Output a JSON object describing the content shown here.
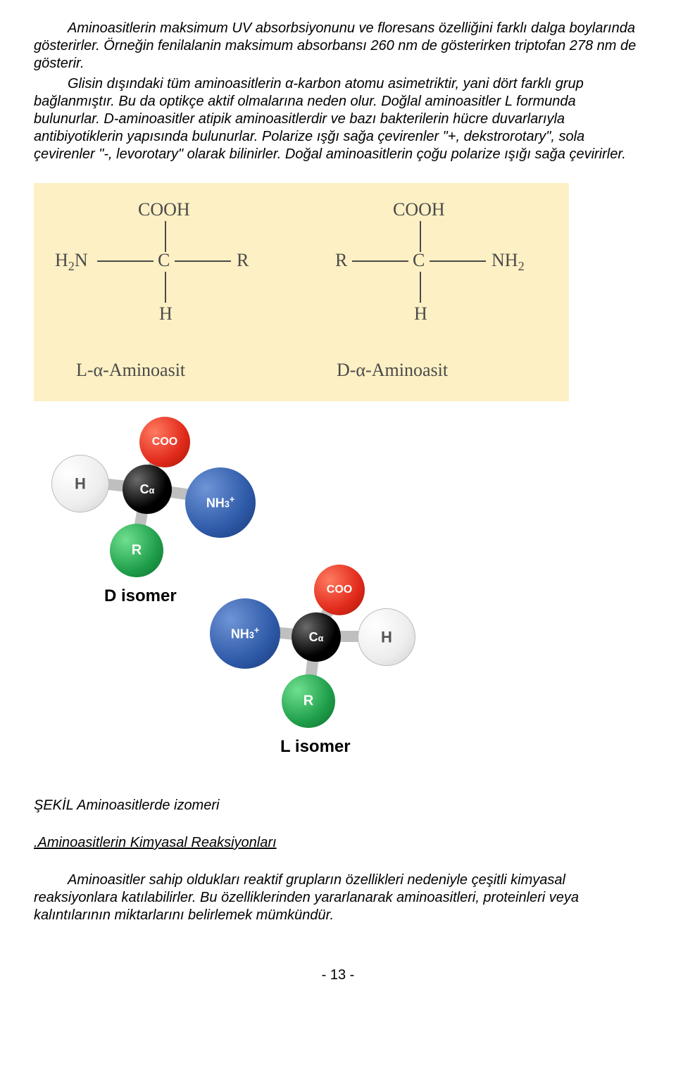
{
  "paragraphs": {
    "p1": "Aminoasitlerin maksimum UV absorbsiyonunu ve floresans özelliğini farklı dalga boylarında gösterirler. Örneğin fenilalanin maksimum absorbansı 260 nm de gösterirken triptofan 278 nm de gösterir.",
    "p2": "Glisin dışındaki tüm aminoasitlerin α-karbon atomu asimetriktir, yani dört farklı grup bağlanmıştır. Bu da optikçe aktif olmalarına neden olur. Doğlal aminoasitler L formunda bulunurlar. D-aminoasitler atipik aminoasitlerdir ve bazı bakterilerin hücre duvarlarıyla antibiyotiklerin yapısında bulunurlar. Polarize ışğı sağa çevirenler \"+, dekstrorotary\", sola çevirenler \"-, levorotary\" olarak bilinirler. Doğal aminoasitlerin çoğu polarize ışığı sağa çevirirler.",
    "figcap": "ŞEKİL  Aminoasitlerde izomeri",
    "heading": ".Aminoasitlerin Kimyasal Reaksiyonları",
    "p3": "Aminoasitler sahip oldukları reaktif grupların özellikleri nedeniyle çeşitli kimyasal reaksiyonlara katılabilirler. Bu özelliklerinden yararlanarak aminoasitleri, proteinleri veya kalıntılarının miktarlarını belirlemek mümkündür.",
    "pagenum": "- 13 -"
  },
  "diagram1": {
    "bg_color": "#fdf0c4",
    "line_color": "#4a4a4a",
    "text_color": "#4a4a4a",
    "labels": {
      "cooh_l": "COOH",
      "cooh_r": "COOH",
      "h2n": "H<span class=\"sub\">2</span>N",
      "c_l": "C",
      "r_l": "R",
      "r_r": "R",
      "c_r": "C",
      "nh2": "NH<span class=\"sub\">2</span>",
      "h_bl": "H",
      "h_br": "H",
      "name_l": "L-α-Aminoasit",
      "name_r": "D-α-Aminoasit"
    }
  },
  "diagram2": {
    "colors": {
      "bond": "#bfbfbf",
      "black": "#000000",
      "red": "#e12a1b",
      "blue": "#2e5aa8",
      "green": "#1f9e4a",
      "white_fill": "#f5f5f5",
      "white_stroke": "#bcbcbc",
      "txt_on_dark": "#ffffff",
      "txt_on_light": "#555555"
    },
    "labels": {
      "coo": "COO",
      "h": "H",
      "c_alpha": "C<span class=\"supersub\">α</span>",
      "nh3": "NH<span class=\"supersub\">3</span><sup class=\"supersub\">+</sup>",
      "r": "R",
      "d_isomer": "D isomer",
      "l_isomer": "L isomer"
    }
  }
}
